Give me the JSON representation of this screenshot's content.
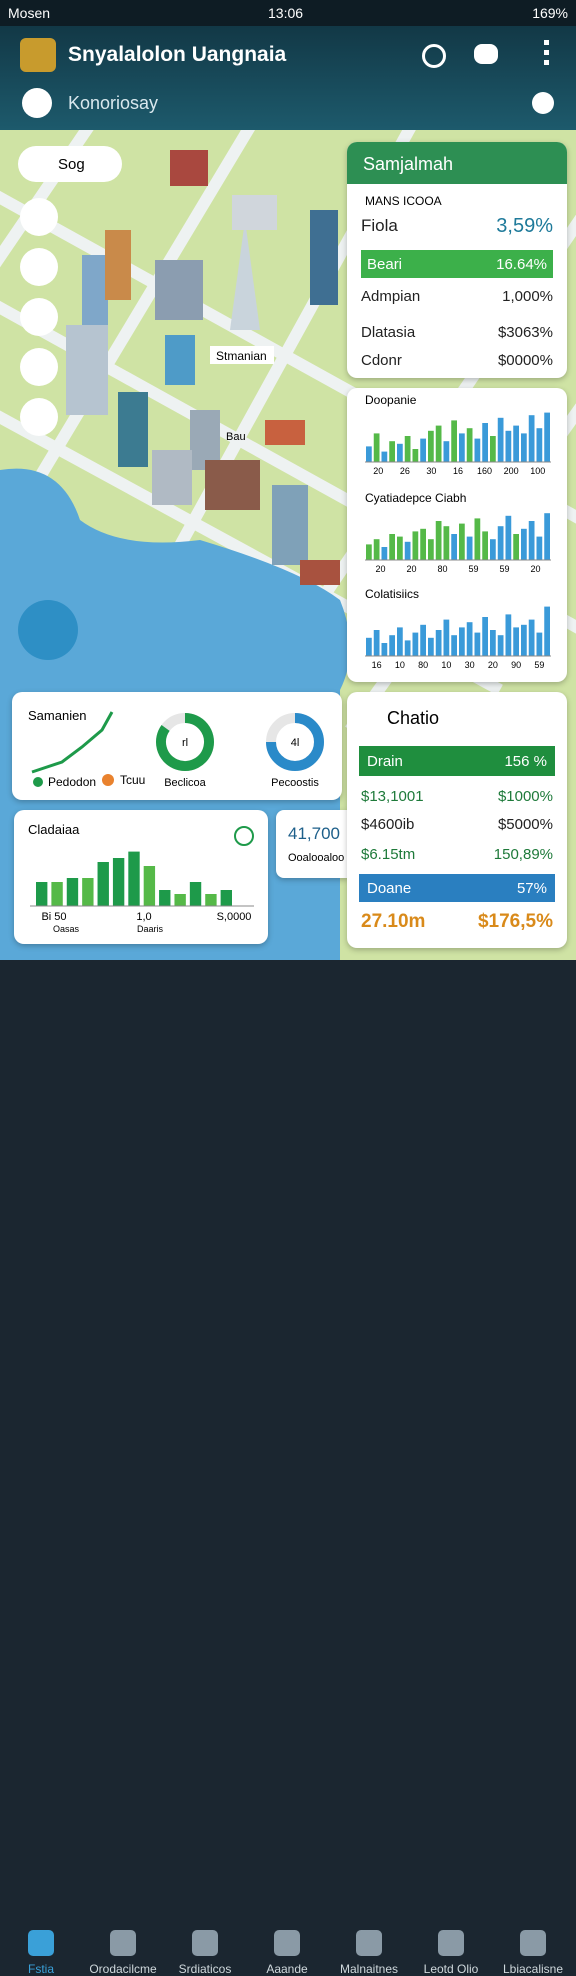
{
  "status": {
    "left": "Mosen",
    "time": "13:06",
    "battery": "169%"
  },
  "header": {
    "title": "Snyalalolon Uangnaia",
    "subtitle": "Konoriosay"
  },
  "map_labels": [
    "Stmanian",
    "Bau"
  ],
  "side_menu": {
    "first": "Sog"
  },
  "stats_panel": {
    "title": "Samjalmah",
    "heading": "MANS ICOOA",
    "rows": [
      {
        "label": "Fiola",
        "value": "3,59%"
      },
      {
        "label": "Beari",
        "value": "16.64%"
      },
      {
        "label": "Admpian",
        "value": "1,000%"
      },
      {
        "label": "Dlatasia",
        "value": "$3063%"
      },
      {
        "label": "Cdonr",
        "value": "$0000%"
      }
    ]
  },
  "charts": [
    {
      "title": "Doopanie",
      "labels": [
        "20",
        "26",
        "30",
        "16",
        "160",
        "200",
        "100"
      ],
      "bars": [
        30,
        55,
        20,
        40,
        35,
        50,
        25,
        45,
        60,
        70,
        40,
        80,
        55,
        65,
        45,
        75,
        50,
        85,
        60,
        70,
        55,
        90,
        65,
        95
      ],
      "bar_colors": [
        "#3a9ad9",
        "#55b948",
        "#3a9ad9",
        "#55b948",
        "#3a9ad9",
        "#55b948",
        "#55b948",
        "#3a9ad9",
        "#55b948",
        "#55b948",
        "#3a9ad9",
        "#55b948",
        "#3a9ad9",
        "#55b948",
        "#3a9ad9",
        "#3a9ad9",
        "#55b948",
        "#3a9ad9",
        "#3a9ad9",
        "#3a9ad9",
        "#3a9ad9",
        "#3a9ad9",
        "#3a9ad9",
        "#3a9ad9"
      ]
    },
    {
      "title": "Cyatiadepce Ciabh",
      "labels": [
        "20",
        "20",
        "80",
        "59",
        "59",
        "20"
      ],
      "bars": [
        30,
        40,
        25,
        50,
        45,
        35,
        55,
        60,
        40,
        75,
        65,
        50,
        70,
        45,
        80,
        55,
        40,
        65,
        85,
        50,
        60,
        75,
        45,
        90
      ],
      "bar_colors": [
        "#55b948",
        "#55b948",
        "#3a9ad9",
        "#55b948",
        "#55b948",
        "#3a9ad9",
        "#55b948",
        "#55b948",
        "#55b948",
        "#55b948",
        "#55b948",
        "#3a9ad9",
        "#55b948",
        "#3a9ad9",
        "#55b948",
        "#55b948",
        "#3a9ad9",
        "#3a9ad9",
        "#3a9ad9",
        "#55b948",
        "#3a9ad9",
        "#3a9ad9",
        "#3a9ad9",
        "#3a9ad9"
      ]
    },
    {
      "title": "Colatisiics",
      "labels": [
        "16",
        "10",
        "80",
        "10",
        "30",
        "20",
        "90",
        "59"
      ],
      "bars": [
        35,
        50,
        25,
        40,
        55,
        30,
        45,
        60,
        35,
        50,
        70,
        40,
        55,
        65,
        45,
        75,
        50,
        40,
        80,
        55,
        60,
        70,
        45,
        95
      ],
      "bar_colors": [
        "#3a9ad9",
        "#3a9ad9",
        "#3a9ad9",
        "#3a9ad9",
        "#3a9ad9",
        "#3a9ad9",
        "#3a9ad9",
        "#3a9ad9",
        "#3a9ad9",
        "#3a9ad9",
        "#3a9ad9",
        "#3a9ad9",
        "#3a9ad9",
        "#3a9ad9",
        "#3a9ad9",
        "#3a9ad9",
        "#3a9ad9",
        "#3a9ad9",
        "#3a9ad9",
        "#3a9ad9",
        "#3a9ad9",
        "#3a9ad9",
        "#3a9ad9",
        "#3a9ad9"
      ]
    }
  ],
  "summary_card": {
    "title": "Samanien",
    "legend": [
      "Pedodon",
      "Tcuu"
    ],
    "donuts": [
      {
        "label": "Beclicoa",
        "center": "rl",
        "value": 85,
        "color": "#1e9a4a"
      },
      {
        "label": "Pecoostis",
        "center": "4l",
        "value": 75,
        "color": "#2a8ac9"
      }
    ]
  },
  "bar_card": {
    "title": "Cladaiaa",
    "labels": [
      "Bi 50",
      "1,0",
      "S,0000"
    ],
    "sublabels": [
      "Oasas",
      "Daaris"
    ],
    "bars": [
      30,
      30,
      35,
      35,
      55,
      60,
      68,
      50,
      20,
      15,
      30,
      15,
      20
    ],
    "bar_colors": [
      "#1e9a4a",
      "#55b948",
      "#1e9a4a",
      "#55b948",
      "#1e9a4a",
      "#1e9a4a",
      "#1e9a4a",
      "#55b948",
      "#1e9a4a",
      "#55b948",
      "#1e9a4a",
      "#55b948",
      "#1e9a4a"
    ]
  },
  "side_card": {
    "value": "41,700",
    "label": "Ooalooaloo"
  },
  "ratio_panel": {
    "title": "Chatio",
    "rows": [
      {
        "label": "Drain",
        "value": "156 %"
      },
      {
        "label": "$13,1001",
        "value": "$1000%"
      },
      {
        "label": "$4600ib",
        "value": "$5000%"
      },
      {
        "label": "$6.15tm",
        "value": "150,89%"
      },
      {
        "label": "Doane",
        "value": "57%"
      },
      {
        "label": "27.10m",
        "value": "$176,5%"
      }
    ]
  },
  "nav": [
    "Fstia",
    "Orodacilcme",
    "Srdiaticos",
    "Aaande",
    "Malnaitnes",
    "Leotd Olio",
    "Lbiacalisne"
  ]
}
